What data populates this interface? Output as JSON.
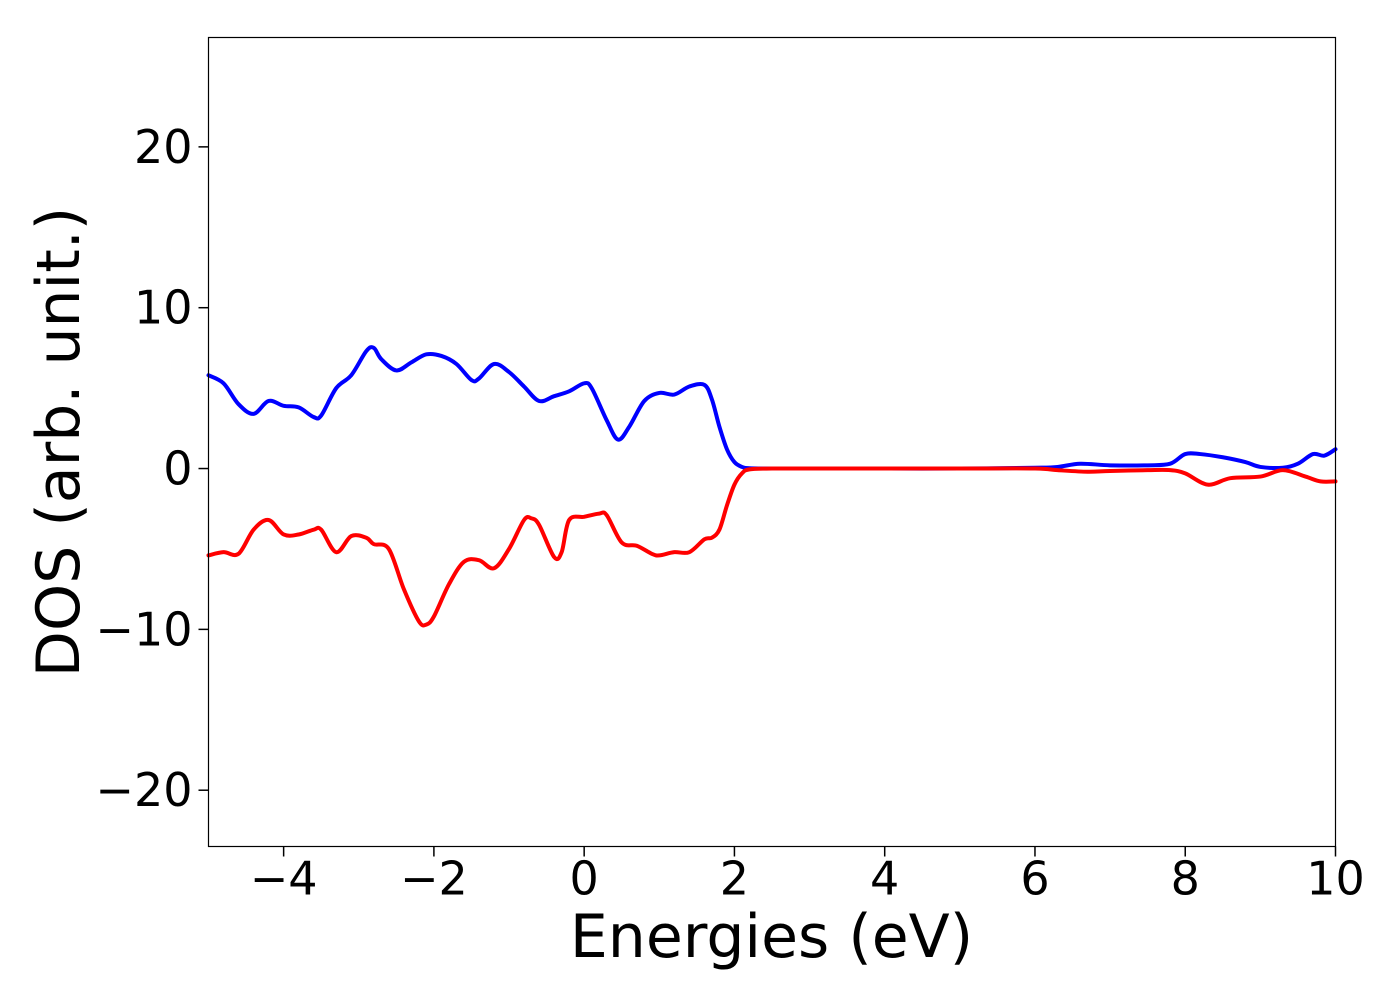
{
  "chart_data": {
    "type": "line",
    "title": "",
    "xlabel": "Energies (eV)",
    "ylabel": "DOS (arb. unit.)",
    "xlim": [
      -5,
      10
    ],
    "ylim": [
      -23.5,
      26.8
    ],
    "xticks": [
      -4,
      -2,
      0,
      2,
      4,
      6,
      8,
      10
    ],
    "xtick_labels": [
      "−4",
      "−2",
      "0",
      "2",
      "4",
      "6",
      "8",
      "10"
    ],
    "yticks": [
      -20,
      -10,
      0,
      10,
      20
    ],
    "ytick_labels": [
      "−20",
      "−10",
      "0",
      "10",
      "20"
    ],
    "grid": false,
    "legend": "none",
    "series": [
      {
        "color": "#0000ff",
        "x": [
          -5.0,
          -4.8,
          -4.6,
          -4.4,
          -4.2,
          -4.0,
          -3.8,
          -3.6,
          -3.5,
          -3.3,
          -3.1,
          -2.9,
          -2.8,
          -2.7,
          -2.5,
          -2.3,
          -2.1,
          -1.9,
          -1.7,
          -1.5,
          -1.4,
          -1.2,
          -1.0,
          -0.8,
          -0.6,
          -0.4,
          -0.2,
          0.0,
          0.1,
          0.3,
          0.45,
          0.6,
          0.8,
          1.0,
          1.2,
          1.4,
          1.6,
          1.7,
          1.8,
          1.9,
          2.0,
          2.1,
          2.2,
          2.5,
          3.0,
          4.0,
          5.0,
          6.0,
          6.3,
          6.6,
          7.0,
          7.5,
          7.8,
          8.0,
          8.2,
          8.5,
          8.8,
          9.0,
          9.3,
          9.5,
          9.7,
          9.85,
          10.0
        ],
        "y": [
          5.8,
          5.3,
          4.0,
          3.4,
          4.2,
          3.9,
          3.8,
          3.2,
          3.3,
          5.0,
          5.8,
          7.3,
          7.5,
          6.8,
          6.1,
          6.6,
          7.1,
          7.0,
          6.5,
          5.5,
          5.6,
          6.5,
          6.0,
          5.1,
          4.2,
          4.5,
          4.8,
          5.3,
          5.0,
          3.0,
          1.8,
          2.6,
          4.2,
          4.7,
          4.6,
          5.1,
          5.2,
          4.3,
          2.6,
          1.2,
          0.4,
          0.1,
          0.02,
          0.0,
          0.0,
          0.0,
          0.0,
          0.05,
          0.1,
          0.3,
          0.2,
          0.2,
          0.3,
          0.9,
          0.9,
          0.7,
          0.4,
          0.1,
          0.05,
          0.3,
          0.9,
          0.8,
          1.2
        ]
      },
      {
        "color": "#ff0000",
        "x": [
          -5.0,
          -4.8,
          -4.6,
          -4.4,
          -4.2,
          -4.0,
          -3.8,
          -3.6,
          -3.5,
          -3.3,
          -3.1,
          -2.9,
          -2.8,
          -2.6,
          -2.4,
          -2.2,
          -2.1,
          -2.0,
          -1.8,
          -1.6,
          -1.4,
          -1.2,
          -1.0,
          -0.8,
          -0.7,
          -0.6,
          -0.4,
          -0.3,
          -0.2,
          0.0,
          0.2,
          0.3,
          0.5,
          0.7,
          0.9,
          1.0,
          1.2,
          1.4,
          1.6,
          1.7,
          1.8,
          1.9,
          2.0,
          2.1,
          2.2,
          2.5,
          3.0,
          4.0,
          5.0,
          6.0,
          6.3,
          6.7,
          7.0,
          7.5,
          7.8,
          8.0,
          8.3,
          8.6,
          9.0,
          9.3,
          9.6,
          9.8,
          10.0
        ],
        "y": [
          -5.4,
          -5.2,
          -5.3,
          -3.8,
          -3.2,
          -4.1,
          -4.1,
          -3.8,
          -3.8,
          -5.2,
          -4.2,
          -4.3,
          -4.7,
          -5.0,
          -7.5,
          -9.5,
          -9.7,
          -9.2,
          -7.2,
          -5.8,
          -5.7,
          -6.2,
          -5.0,
          -3.2,
          -3.1,
          -3.5,
          -5.5,
          -5.2,
          -3.2,
          -3.0,
          -2.8,
          -2.9,
          -4.6,
          -4.8,
          -5.3,
          -5.4,
          -5.2,
          -5.2,
          -4.4,
          -4.3,
          -3.8,
          -2.3,
          -1.0,
          -0.3,
          -0.05,
          0.0,
          0.0,
          0.0,
          0.0,
          0.0,
          -0.1,
          -0.2,
          -0.15,
          -0.1,
          -0.1,
          -0.3,
          -1.0,
          -0.6,
          -0.5,
          -0.1,
          -0.5,
          -0.8,
          -0.8
        ]
      }
    ]
  }
}
